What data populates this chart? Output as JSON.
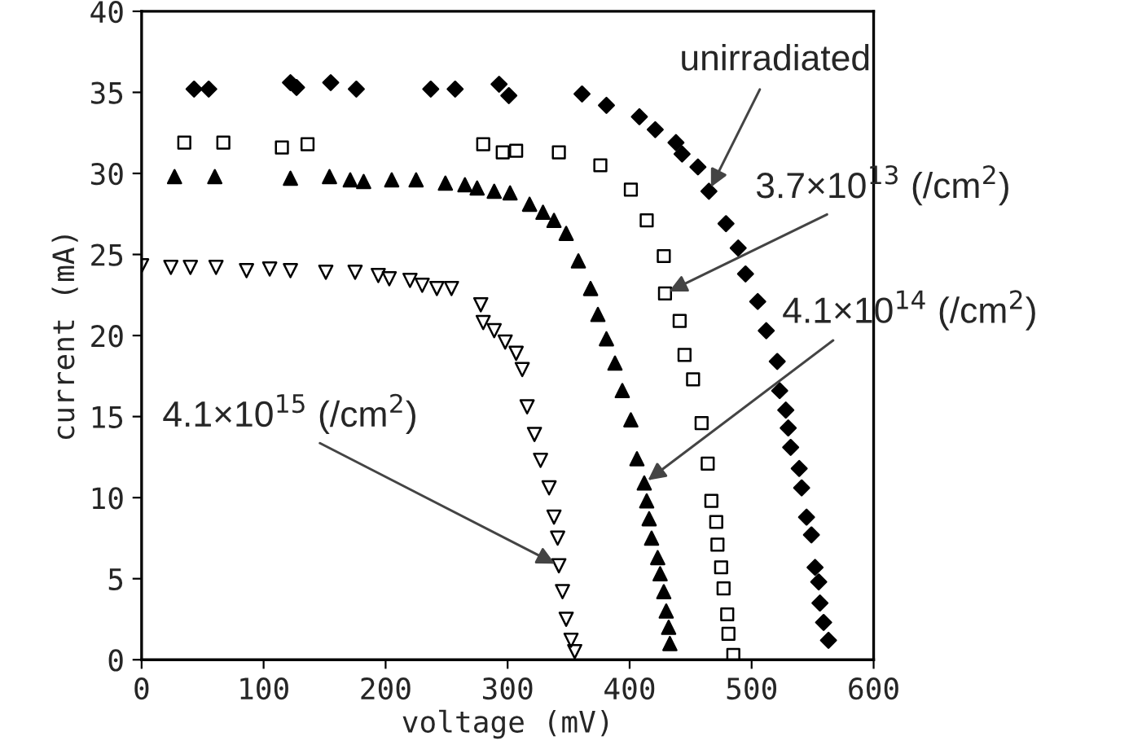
{
  "chart_data": {
    "type": "scatter",
    "xlabel": "voltage (mV)",
    "ylabel": "current (mA)",
    "xlim": [
      0,
      600
    ],
    "ylim": [
      0,
      40
    ],
    "xticks": [
      0,
      100,
      200,
      300,
      400,
      500,
      600
    ],
    "yticks": [
      0,
      5,
      10,
      15,
      20,
      25,
      30,
      35,
      40
    ],
    "grid": false,
    "legend": false,
    "series": [
      {
        "color": "#000000",
        "marker": "diamond",
        "x": [
          43,
          55,
          122,
          127,
          155,
          176,
          237,
          257,
          293,
          301,
          361,
          381,
          408,
          421,
          438,
          443,
          456,
          465,
          479,
          489,
          495,
          505,
          512,
          521,
          523,
          528,
          530,
          532,
          539,
          541,
          545,
          549,
          552,
          555,
          556,
          559,
          563
        ],
        "values": [
          35.2,
          35.2,
          35.6,
          35.3,
          35.6,
          35.2,
          35.2,
          35.2,
          35.5,
          34.8,
          34.9,
          34.2,
          33.5,
          32.7,
          31.9,
          31.2,
          30.4,
          28.9,
          26.9,
          25.4,
          23.8,
          22.1,
          20.3,
          18.4,
          16.6,
          15.4,
          14.3,
          13.1,
          11.8,
          10.6,
          8.8,
          7.7,
          5.7,
          4.8,
          3.5,
          2.3,
          1.2
        ]
      },
      {
        "color": "#000000",
        "marker": "square",
        "x": [
          35,
          67,
          115,
          136,
          280,
          296,
          307,
          342,
          376,
          401,
          414,
          428,
          429,
          441,
          445,
          452,
          459,
          464,
          467,
          471,
          472,
          475,
          477,
          480,
          481,
          485
        ],
        "values": [
          31.9,
          31.9,
          31.6,
          31.8,
          31.8,
          31.3,
          31.4,
          31.3,
          30.5,
          29.0,
          27.1,
          24.9,
          22.6,
          20.9,
          18.8,
          17.3,
          14.6,
          12.1,
          9.8,
          8.5,
          7.1,
          5.7,
          4.4,
          2.8,
          1.6,
          0.3
        ]
      },
      {
        "color": "#000000",
        "marker": "triangle",
        "x": [
          27,
          60,
          122,
          154,
          171,
          182,
          205,
          225,
          249,
          265,
          275,
          289,
          302,
          318,
          329,
          338,
          348,
          358,
          368,
          374,
          381,
          388,
          394,
          401,
          406,
          412,
          414,
          416,
          418,
          423,
          425,
          428,
          430,
          432,
          433
        ],
        "values": [
          29.8,
          29.8,
          29.7,
          29.8,
          29.6,
          29.5,
          29.6,
          29.6,
          29.4,
          29.3,
          29.1,
          28.9,
          28.8,
          28.1,
          27.6,
          27.1,
          26.3,
          24.6,
          22.9,
          21.3,
          19.8,
          18.3,
          16.6,
          14.8,
          12.4,
          10.9,
          9.8,
          8.7,
          7.5,
          6.3,
          5.3,
          4.2,
          3.0,
          2.0,
          1.0
        ]
      },
      {
        "color": "#000000",
        "marker": "triangle_down",
        "x": [
          0,
          24,
          40,
          61,
          86,
          105,
          122,
          151,
          175,
          194,
          203,
          220,
          230,
          242,
          254,
          278,
          280,
          289,
          298,
          307,
          312,
          316,
          322,
          327,
          334,
          338,
          341,
          342,
          345,
          348,
          352,
          355
        ],
        "values": [
          24.3,
          24.2,
          24.2,
          24.2,
          24.0,
          24.1,
          24.0,
          23.9,
          23.9,
          23.7,
          23.5,
          23.4,
          23.1,
          22.9,
          22.9,
          21.9,
          20.8,
          20.3,
          19.6,
          18.9,
          17.9,
          15.6,
          13.9,
          12.3,
          10.6,
          8.8,
          7.5,
          5.8,
          4.2,
          2.5,
          1.2,
          0.5
        ]
      }
    ],
    "annotations": [
      {
        "text": "unirradiated",
        "x": 465,
        "y": 28.9
      },
      {
        "text": "3.7×10$^{13}$ (/cm$^{2}$)",
        "x": 429,
        "y": 22.6
      },
      {
        "text": "4.1×10$^{14}$ (/cm$^{2}$)",
        "x": 412,
        "y": 10.9
      },
      {
        "text": "4.1×10$^{15}$ (/cm$^{2}$)",
        "x": 342,
        "y": 5.8
      }
    ]
  }
}
